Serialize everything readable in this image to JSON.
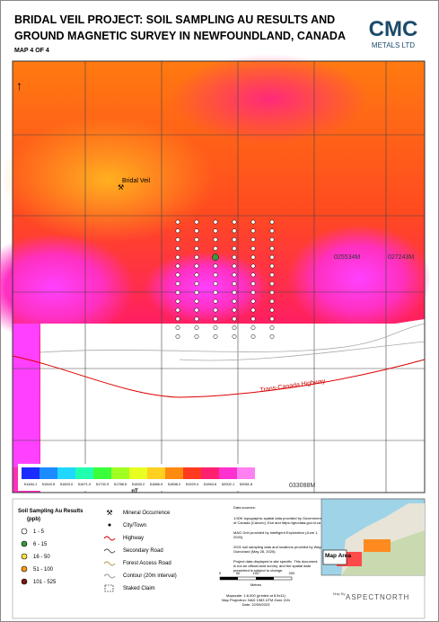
{
  "header": {
    "title_line1": "BRIDAL VEIL PROJECT: SOIL SAMPLING AU RESULTS AND",
    "title_line2": "GROUND MAGNETIC SURVEY IN NEWFOUNDLAND, CANADA",
    "subtitle": "MAP 4 OF 4",
    "logo": "CMC",
    "logo_sub": "METALS LTD"
  },
  "map": {
    "labels": {
      "town": "Bridal Veil",
      "claim1": "025534M",
      "claim2": "027243M",
      "claim3": "033088M",
      "highway": "Trans-Canada Highway"
    },
    "colorbar": {
      "labels": [
        "51484.1",
        "51543.5",
        "51603.0",
        "51671.0",
        "51732.9",
        "51788.5",
        "51833.2",
        "51866.9",
        "51898.2",
        "51929.4",
        "51963.6",
        "52002.1",
        "52061.8"
      ],
      "unit": "nT"
    }
  },
  "legend": {
    "soil": {
      "title": "Soil Sampling Au Results",
      "unit": "(ppb)",
      "classes": [
        "1 - 5",
        "6 - 15",
        "16 - 50",
        "51 - 100",
        "101 - 525"
      ]
    },
    "symbols": [
      "Mineral Occurrence",
      "City/Town",
      "Highway",
      "Secondary Road",
      "Forest Access Road",
      "Contour (20m interval)",
      "Staked Claim"
    ]
  },
  "sources": {
    "heading": "Data sources:",
    "lines": [
      "1:50K topographic spatial data provided by Government of Canada (Canvec), Esri and https://geodata.gov.nl.ca",
      "MAG Grid provided by Intelligent Exploration (June 1, 2020).",
      "2021 soil sampling data and locations provided by Wayde Guinchard (May 28, 2020).",
      "Project data displayed is site specific. This document is not an official land survey, and the spatial data presented is subject to change."
    ]
  },
  "scale": {
    "ticks": [
      "0",
      "50",
      "100",
      "200"
    ],
    "unit": "Metres",
    "footer": [
      "Mapscale: 1:6,000 (printed at 8.5x11)",
      "Map Projection: NAD 1983 UTM Zone 21N",
      "Date: 22/09/2023"
    ]
  },
  "inset": {
    "label": "Map Area",
    "credit": "Map By",
    "brand": "ASPECTNORTH"
  }
}
